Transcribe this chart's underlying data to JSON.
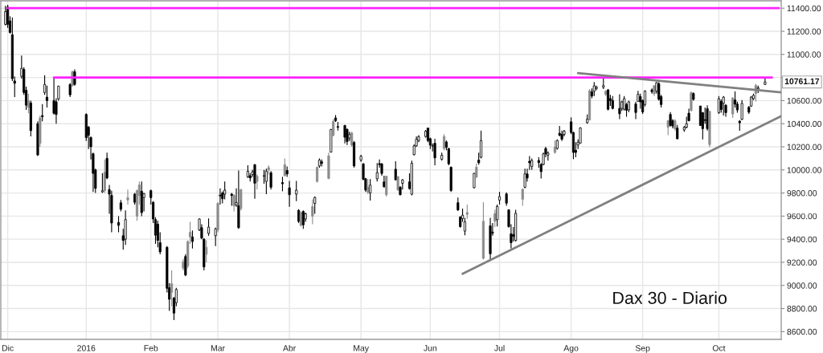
{
  "chart_data": {
    "type": "candlestick",
    "title": "Dax 30 - Diario",
    "x": [
      "2015-11-30",
      "2015-12-01",
      "2015-12-02",
      "2015-12-03",
      "2015-12-04",
      "2015-12-07",
      "2015-12-08",
      "2015-12-09",
      "2015-12-10",
      "2015-12-11",
      "2015-12-14",
      "2015-12-15",
      "2015-12-16",
      "2015-12-17",
      "2015-12-18",
      "2015-12-21",
      "2015-12-22",
      "2015-12-23",
      "2015-12-28",
      "2015-12-29",
      "2015-12-30",
      "2016-01-04",
      "2016-01-05",
      "2016-01-06",
      "2016-01-07",
      "2016-01-08",
      "2016-01-11",
      "2016-01-12",
      "2016-01-13",
      "2016-01-14",
      "2016-01-15",
      "2016-01-18",
      "2016-01-19",
      "2016-01-20",
      "2016-01-21",
      "2016-01-22",
      "2016-01-25",
      "2016-01-26",
      "2016-01-27",
      "2016-01-28",
      "2016-01-29",
      "2016-02-01",
      "2016-02-02",
      "2016-02-03",
      "2016-02-04",
      "2016-02-05",
      "2016-02-08",
      "2016-02-09",
      "2016-02-10",
      "2016-02-11",
      "2016-02-12",
      "2016-02-15",
      "2016-02-16",
      "2016-02-17",
      "2016-02-18",
      "2016-02-19",
      "2016-02-22",
      "2016-02-23",
      "2016-02-24",
      "2016-02-25",
      "2016-02-26",
      "2016-02-29",
      "2016-03-01",
      "2016-03-02",
      "2016-03-03",
      "2016-03-04",
      "2016-03-07",
      "2016-03-08",
      "2016-03-09",
      "2016-03-10",
      "2016-03-11",
      "2016-03-14",
      "2016-03-15",
      "2016-03-16",
      "2016-03-17",
      "2016-03-18",
      "2016-03-21",
      "2016-03-22",
      "2016-03-23",
      "2016-03-24",
      "2016-03-29",
      "2016-03-30",
      "2016-03-31",
      "2016-04-01",
      "2016-04-04",
      "2016-04-05",
      "2016-04-06",
      "2016-04-07",
      "2016-04-08",
      "2016-04-11",
      "2016-04-12",
      "2016-04-13",
      "2016-04-14",
      "2016-04-15",
      "2016-04-18",
      "2016-04-19",
      "2016-04-20",
      "2016-04-21",
      "2016-04-22",
      "2016-04-25",
      "2016-04-26",
      "2016-04-27",
      "2016-04-28",
      "2016-04-29",
      "2016-05-02",
      "2016-05-03",
      "2016-05-04",
      "2016-05-05",
      "2016-05-06",
      "2016-05-09",
      "2016-05-10",
      "2016-05-11",
      "2016-05-12",
      "2016-05-13",
      "2016-05-17",
      "2016-05-18",
      "2016-05-19",
      "2016-05-20",
      "2016-05-23",
      "2016-05-24",
      "2016-05-25",
      "2016-05-26",
      "2016-05-27",
      "2016-05-30",
      "2016-05-31",
      "2016-06-01",
      "2016-06-02",
      "2016-06-03",
      "2016-06-06",
      "2016-06-07",
      "2016-06-08",
      "2016-06-09",
      "2016-06-10",
      "2016-06-13",
      "2016-06-14",
      "2016-06-15",
      "2016-06-16",
      "2016-06-17",
      "2016-06-20",
      "2016-06-21",
      "2016-06-22",
      "2016-06-23",
      "2016-06-24",
      "2016-06-27",
      "2016-06-28",
      "2016-06-29",
      "2016-06-30",
      "2016-07-01",
      "2016-07-04",
      "2016-07-05",
      "2016-07-06",
      "2016-07-07",
      "2016-07-08",
      "2016-07-11",
      "2016-07-12",
      "2016-07-13",
      "2016-07-14",
      "2016-07-15",
      "2016-07-18",
      "2016-07-19",
      "2016-07-20",
      "2016-07-21",
      "2016-07-22",
      "2016-07-25",
      "2016-07-26",
      "2016-07-27",
      "2016-07-28",
      "2016-07-29",
      "2016-08-01",
      "2016-08-02",
      "2016-08-03",
      "2016-08-04",
      "2016-08-05",
      "2016-08-08",
      "2016-08-09",
      "2016-08-10",
      "2016-08-11",
      "2016-08-12",
      "2016-08-15",
      "2016-08-16",
      "2016-08-17",
      "2016-08-18",
      "2016-08-19",
      "2016-08-22",
      "2016-08-23",
      "2016-08-24",
      "2016-08-25",
      "2016-08-26",
      "2016-08-29",
      "2016-08-30",
      "2016-08-31",
      "2016-09-01",
      "2016-09-02",
      "2016-09-05",
      "2016-09-06",
      "2016-09-07",
      "2016-09-08",
      "2016-09-09",
      "2016-09-12",
      "2016-09-13",
      "2016-09-14",
      "2016-09-15",
      "2016-09-16",
      "2016-09-19",
      "2016-09-20",
      "2016-09-21",
      "2016-09-22",
      "2016-09-23",
      "2016-09-26",
      "2016-09-27",
      "2016-09-28",
      "2016-09-29",
      "2016-09-30",
      "2016-10-04",
      "2016-10-05",
      "2016-10-06",
      "2016-10-07",
      "2016-10-10",
      "2016-10-11",
      "2016-10-12",
      "2016-10-13",
      "2016-10-14",
      "2016-10-17",
      "2016-10-18",
      "2016-10-19",
      "2016-10-20",
      "2016-10-21",
      "2016-10-24"
    ],
    "ohlc": [
      [
        11260,
        11420,
        11250,
        11370
      ],
      [
        11410,
        11430,
        11230,
        11260
      ],
      [
        11290,
        11330,
        11180,
        11190
      ],
      [
        11170,
        11320,
        10770,
        10790
      ],
      [
        10770,
        10810,
        10630,
        10750
      ],
      [
        10810,
        10990,
        10790,
        10880
      ],
      [
        10870,
        10890,
        10650,
        10670
      ],
      [
        10690,
        10720,
        10520,
        10560
      ],
      [
        10540,
        10660,
        10490,
        10600
      ],
      [
        10580,
        10600,
        10290,
        10340
      ],
      [
        10400,
        10420,
        10120,
        10130
      ],
      [
        10230,
        10470,
        10200,
        10450
      ],
      [
        10470,
        10570,
        10420,
        10460
      ],
      [
        10670,
        10820,
        10650,
        10740
      ],
      [
        10630,
        10730,
        10540,
        10600
      ],
      [
        10600,
        10800,
        10480,
        10490
      ],
      [
        10590,
        10620,
        10400,
        10480
      ],
      [
        10615,
        10730,
        10600,
        10725
      ],
      [
        10740,
        10750,
        10630,
        10650
      ],
      [
        10730,
        10860,
        10720,
        10850
      ],
      [
        10850,
        10870,
        10730,
        10740
      ],
      [
        10480,
        10490,
        10250,
        10280
      ],
      [
        10370,
        10380,
        10180,
        10300
      ],
      [
        10280,
        10290,
        10090,
        10200
      ],
      [
        10140,
        10150,
        9810,
        9970
      ],
      [
        10000,
        10010,
        9800,
        9840
      ],
      [
        9810,
        9970,
        9800,
        9820
      ],
      [
        9820,
        10090,
        9800,
        9980
      ],
      [
        10100,
        10150,
        9920,
        9930
      ],
      [
        9830,
        9870,
        9620,
        9790
      ],
      [
        9780,
        9820,
        9460,
        9540
      ],
      [
        9545,
        9600,
        9460,
        9520
      ],
      [
        9715,
        9740,
        9640,
        9660
      ],
      [
        9430,
        9490,
        9310,
        9390
      ],
      [
        9400,
        9650,
        9350,
        9570
      ],
      [
        9740,
        9830,
        9700,
        9760
      ],
      [
        9790,
        9800,
        9700,
        9720
      ],
      [
        9600,
        9830,
        9560,
        9820
      ],
      [
        9780,
        9900,
        9700,
        9870
      ],
      [
        9815,
        9900,
        9600,
        9630
      ],
      [
        9760,
        9800,
        9640,
        9795
      ],
      [
        9820,
        9830,
        9700,
        9760
      ],
      [
        9720,
        9730,
        9540,
        9575
      ],
      [
        9570,
        9590,
        9360,
        9435
      ],
      [
        9530,
        9560,
        9330,
        9390
      ],
      [
        9370,
        9460,
        9270,
        9290
      ],
      [
        9330,
        9340,
        8940,
        8975
      ],
      [
        8980,
        9020,
        8780,
        8880
      ],
      [
        8940,
        9130,
        8820,
        9015
      ],
      [
        8890,
        8900,
        8700,
        8760
      ],
      [
        8850,
        8980,
        8820,
        8965
      ],
      [
        9150,
        9230,
        9130,
        9205
      ],
      [
        9250,
        9270,
        9080,
        9090
      ],
      [
        9170,
        9390,
        9150,
        9380
      ],
      [
        9420,
        9550,
        9360,
        9460
      ],
      [
        9420,
        9475,
        9320,
        9380
      ],
      [
        9480,
        9580,
        9470,
        9575
      ],
      [
        9500,
        9530,
        9400,
        9410
      ],
      [
        9400,
        9410,
        9130,
        9160
      ],
      [
        9270,
        9390,
        9200,
        9330
      ],
      [
        9450,
        9580,
        9430,
        9505
      ],
      [
        9430,
        9500,
        9340,
        9490
      ],
      [
        9480,
        9720,
        9460,
        9710
      ],
      [
        9780,
        9840,
        9700,
        9775
      ],
      [
        9800,
        9815,
        9710,
        9750
      ],
      [
        9790,
        9900,
        9745,
        9825
      ],
      [
        9790,
        9800,
        9690,
        9778
      ],
      [
        9780,
        9790,
        9640,
        9690
      ],
      [
        9695,
        9840,
        9680,
        9718
      ],
      [
        9690,
        9995,
        9490,
        9500
      ],
      [
        9665,
        9835,
        9650,
        9830
      ],
      [
        9940,
        10040,
        9930,
        9988
      ],
      [
        9950,
        9970,
        9900,
        9930
      ],
      [
        9960,
        10000,
        9940,
        9983
      ],
      [
        10045,
        10050,
        9750,
        9885
      ],
      [
        9900,
        9960,
        9830,
        9945
      ],
      [
        9945,
        10000,
        9880,
        9950
      ],
      [
        9900,
        10010,
        9790,
        9990
      ],
      [
        10000,
        10040,
        9960,
        10020
      ],
      [
        9975,
        9990,
        9830,
        9850
      ],
      [
        9890,
        9940,
        9815,
        9880
      ],
      [
        9950,
        10100,
        9945,
        10045
      ],
      [
        9995,
        10030,
        9940,
        9965
      ],
      [
        9845,
        9905,
        9680,
        9785
      ],
      [
        9790,
        9905,
        9730,
        9825
      ],
      [
        9650,
        9660,
        9540,
        9555
      ],
      [
        9520,
        9640,
        9510,
        9630
      ],
      [
        9640,
        9650,
        9490,
        9525
      ],
      [
        9575,
        9630,
        9550,
        9620
      ],
      [
        9600,
        9745,
        9530,
        9683
      ],
      [
        9710,
        9770,
        9620,
        9762
      ],
      [
        9900,
        10030,
        9890,
        10022
      ],
      [
        10034,
        10100,
        10020,
        10085
      ],
      [
        10070,
        10090,
        10030,
        10057
      ],
      [
        9925,
        10150,
        9920,
        10122
      ],
      [
        10155,
        10355,
        10150,
        10350
      ],
      [
        10300,
        10440,
        10290,
        10420
      ],
      [
        10450,
        10475,
        10415,
        10426
      ],
      [
        10375,
        10415,
        10340,
        10369
      ],
      [
        10385,
        10390,
        10230,
        10283
      ],
      [
        10350,
        10360,
        10215,
        10246
      ],
      [
        10276,
        10330,
        10250,
        10306
      ],
      [
        10215,
        10330,
        10200,
        10320
      ],
      [
        10237,
        10250,
        10020,
        10034
      ],
      [
        10085,
        10130,
        10070,
        10119
      ],
      [
        10052,
        10060,
        9910,
        9919
      ],
      [
        9923,
        9930,
        9810,
        9826
      ],
      [
        9808,
        9920,
        9790,
        9850
      ],
      [
        9800,
        9920,
        9735,
        9868
      ],
      [
        9923,
        10060,
        9900,
        9976
      ],
      [
        10055,
        10090,
        10020,
        10045
      ],
      [
        10052,
        10060,
        9950,
        9969
      ],
      [
        9896,
        9950,
        9845,
        9855
      ],
      [
        9785,
        9950,
        9770,
        9945
      ],
      [
        10006,
        10075,
        9910,
        9914
      ],
      [
        9827,
        9945,
        9820,
        9942
      ],
      [
        9850,
        9860,
        9780,
        9785
      ],
      [
        9884,
        9920,
        9830,
        9914
      ],
      [
        9896,
        9970,
        9830,
        9838
      ],
      [
        9790,
        10080,
        9780,
        10057
      ],
      [
        10132,
        10220,
        10125,
        10208
      ],
      [
        10208,
        10290,
        10200,
        10265
      ],
      [
        10254,
        10300,
        10240,
        10288
      ],
      [
        10289,
        10345,
        10280,
        10335
      ],
      [
        10362,
        10365,
        10240,
        10254
      ],
      [
        10270,
        10280,
        10180,
        10215
      ],
      [
        10205,
        10230,
        10160,
        10212
      ],
      [
        10231,
        10270,
        10040,
        10104
      ],
      [
        10092,
        10150,
        10080,
        10127
      ],
      [
        10185,
        10310,
        10170,
        10289
      ],
      [
        10242,
        10255,
        10170,
        10196
      ],
      [
        10185,
        10190,
        10040,
        10053
      ],
      [
        10023,
        10030,
        9810,
        9822
      ],
      [
        9716,
        9760,
        9645,
        9654
      ],
      [
        9592,
        9600,
        9500,
        9509
      ],
      [
        9578,
        9665,
        9550,
        9608
      ],
      [
        9470,
        9585,
        9435,
        9550
      ],
      [
        9615,
        9700,
        9575,
        9631
      ],
      [
        9846,
        9975,
        9840,
        9970
      ],
      [
        9938,
        10055,
        9930,
        10023
      ],
      [
        10085,
        10150,
        10045,
        10062
      ],
      [
        10109,
        10340,
        10100,
        10254
      ],
      [
        9234,
        9720,
        9225,
        9555
      ],
      [
        9516,
        9585,
        9223,
        9274
      ],
      [
        9462,
        9540,
        9430,
        9452
      ],
      [
        9555,
        9655,
        9505,
        9620
      ],
      [
        9569,
        9700,
        9510,
        9684
      ],
      [
        9739,
        9810,
        9700,
        9769
      ],
      [
        9792,
        9805,
        9690,
        9712
      ],
      [
        9654,
        9660,
        9500,
        9509
      ],
      [
        9447,
        9530,
        9320,
        9370
      ],
      [
        9440,
        9505,
        9380,
        9425
      ],
      [
        9389,
        9655,
        9380,
        9624
      ],
      [
        9746,
        9840,
        9690,
        9832
      ],
      [
        9850,
        10010,
        9840,
        9966
      ],
      [
        9965,
        10010,
        9900,
        9930
      ],
      [
        10075,
        10120,
        10000,
        10062
      ],
      [
        10030,
        10100,
        10000,
        10081
      ],
      [
        10082,
        10110,
        10020,
        10063
      ],
      [
        10047,
        10060,
        9925,
        9985
      ],
      [
        10047,
        10150,
        10040,
        10139
      ],
      [
        10185,
        10200,
        10110,
        10140
      ],
      [
        10128,
        10160,
        10080,
        10146
      ],
      [
        10151,
        10255,
        10140,
        10197
      ],
      [
        10186,
        10265,
        10175,
        10255
      ],
      [
        10317,
        10380,
        10290,
        10301
      ],
      [
        10308,
        10340,
        10250,
        10266
      ],
      [
        10308,
        10345,
        10290,
        10336
      ],
      [
        10416,
        10456,
        10310,
        10324
      ],
      [
        10324,
        10330,
        10093,
        10151
      ],
      [
        10170,
        10240,
        10110,
        10151
      ],
      [
        10215,
        10265,
        10180,
        10239
      ],
      [
        10232,
        10370,
        10230,
        10363
      ],
      [
        10409,
        10480,
        10400,
        10439
      ],
      [
        10432,
        10700,
        10430,
        10686
      ],
      [
        10677,
        10705,
        10620,
        10640
      ],
      [
        10682,
        10760,
        10640,
        10728
      ],
      [
        10705,
        10730,
        10690,
        10716
      ],
      [
        10716,
        10809,
        10700,
        10730
      ],
      [
        10654,
        10690,
        10640,
        10681
      ],
      [
        10693,
        10700,
        10515,
        10525
      ],
      [
        10617,
        10650,
        10555,
        10601
      ],
      [
        10601,
        10640,
        10525,
        10532
      ],
      [
        10532,
        10654,
        10439,
        10486
      ],
      [
        10532,
        10600,
        10510,
        10589
      ],
      [
        10525,
        10640,
        10515,
        10617
      ],
      [
        10566,
        10580,
        10460,
        10516
      ],
      [
        10520,
        10600,
        10500,
        10589
      ],
      [
        10571,
        10590,
        10440,
        10497
      ],
      [
        10594,
        10685,
        10590,
        10654
      ],
      [
        10635,
        10660,
        10530,
        10589
      ],
      [
        10601,
        10610,
        10485,
        10502
      ],
      [
        10566,
        10690,
        10550,
        10682
      ],
      [
        10693,
        10705,
        10660,
        10677
      ],
      [
        10659,
        10735,
        10640,
        10728
      ],
      [
        10682,
        10760,
        10660,
        10755
      ],
      [
        10746,
        10760,
        10600,
        10612
      ],
      [
        10635,
        10650,
        10540,
        10566
      ],
      [
        10370,
        10430,
        10300,
        10426
      ],
      [
        10480,
        10500,
        10375,
        10385
      ],
      [
        10426,
        10440,
        10360,
        10380
      ],
      [
        10357,
        10440,
        10340,
        10426
      ],
      [
        10362,
        10390,
        10265,
        10270
      ],
      [
        10346,
        10380,
        10330,
        10369
      ],
      [
        10369,
        10460,
        10360,
        10399
      ],
      [
        10491,
        10530,
        10420,
        10426
      ],
      [
        10514,
        10680,
        10505,
        10669
      ],
      [
        10662,
        10670,
        10600,
        10611
      ],
      [
        10553,
        10555,
        10380,
        10385
      ],
      [
        10496,
        10500,
        10265,
        10357
      ],
      [
        10435,
        10540,
        10400,
        10428
      ],
      [
        10530,
        10560,
        10340,
        10357
      ],
      [
        10219,
        10510,
        10196,
        10507
      ],
      [
        10496,
        10640,
        10485,
        10616
      ],
      [
        10593,
        10610,
        10495,
        10523
      ],
      [
        10576,
        10640,
        10470,
        10630
      ],
      [
        10560,
        10570,
        10460,
        10496
      ],
      [
        10484,
        10630,
        10450,
        10622
      ],
      [
        10606,
        10680,
        10540,
        10569
      ],
      [
        10569,
        10590,
        10495,
        10519
      ],
      [
        10422,
        10430,
        10339,
        10408
      ],
      [
        10438,
        10605,
        10430,
        10576
      ],
      [
        10542,
        10555,
        10485,
        10500
      ],
      [
        10553,
        10640,
        10545,
        10630
      ],
      [
        10616,
        10660,
        10605,
        10646
      ],
      [
        10662,
        10745,
        10590,
        10731
      ],
      [
        10700,
        10730,
        10665,
        10711
      ],
      [
        10740,
        10805,
        10735,
        10761.17
      ]
    ],
    "colors": [
      "#ffffff",
      "#000000",
      "#000000",
      "#000000",
      "#000000",
      "#ffffff",
      "#000000",
      "#000000",
      "#8c8c8c",
      "#000000",
      "#000000",
      "#8c8c8c",
      "#000000",
      "#ffffff",
      "#000000",
      "#000000",
      "#000000",
      "#ffffff",
      "#000000",
      "#8c8c8c",
      "#000000",
      "#000000",
      "#000000",
      "#000000",
      "#000000",
      "#000000",
      "#ffffff",
      "#8c8c8c",
      "#000000",
      "#000000",
      "#000000",
      "#000000",
      "#000000",
      "#000000",
      "#ffffff",
      "#8c8c8c",
      "#000000",
      "#8c8c8c",
      "#8c8c8c",
      "#000000",
      "#ffffff",
      "#000000",
      "#000000",
      "#000000",
      "#000000",
      "#000000",
      "#000000",
      "#000000",
      "#8c8c8c",
      "#000000",
      "#ffffff",
      "#8c8c8c",
      "#000000",
      "#8c8c8c",
      "#8c8c8c",
      "#000000",
      "#ffffff",
      "#000000",
      "#000000",
      "#8c8c8c",
      "#ffffff",
      "#ffffff",
      "#8c8c8c",
      "#000000",
      "#000000",
      "#ffffff",
      "#000000",
      "#8c8c8c",
      "#ffffff",
      "#000000",
      "#8c8c8c",
      "#ffffff",
      "#000000",
      "#ffffff",
      "#000000",
      "#8c8c8c",
      "#ffffff",
      "#ffffff",
      "#8c8c8c",
      "#000000",
      "#000000",
      "#8c8c8c",
      "#000000",
      "#000000",
      "#ffffff",
      "#000000",
      "#8c8c8c",
      "#000000",
      "#ffffff",
      "#8c8c8c",
      "#ffffff",
      "#8c8c8c",
      "#ffffff",
      "#000000",
      "#8c8c8c",
      "#ffffff",
      "#8c8c8c",
      "#000000",
      "#000000",
      "#000000",
      "#000000",
      "#ffffff",
      "#8c8c8c",
      "#000000",
      "#ffffff",
      "#000000",
      "#000000",
      "#8c8c8c",
      "#ffffff",
      "#ffffff",
      "#000000",
      "#000000",
      "#000000",
      "#8c8c8c",
      "#000000",
      "#8c8c8c",
      "#000000",
      "#ffffff",
      "#000000",
      "#ffffff",
      "#ffffff",
      "#ffffff",
      "#ffffff",
      "#ffffff",
      "#000000",
      "#000000",
      "#ffffff",
      "#000000",
      "#ffffff",
      "#8c8c8c",
      "#000000",
      "#000000",
      "#000000",
      "#000000",
      "#000000",
      "#ffffff",
      "#ffffff",
      "#8c8c8c",
      "#ffffff",
      "#8c8c8c",
      "#000000",
      "#ffffff",
      "#8c8c8c",
      "#000000",
      "#000000",
      "#8c8c8c",
      "#ffffff",
      "#ffffff",
      "#000000",
      "#000000",
      "#000000",
      "#000000",
      "#ffffff",
      "#8c8c8c",
      "#ffffff",
      "#000000",
      "#000000",
      "#ffffff",
      "#000000",
      "#000000",
      "#ffffff",
      "#000000",
      "#ffffff",
      "#8c8c8c",
      "#ffffff",
      "#000000",
      "#000000",
      "#ffffff",
      "#000000",
      "#000000",
      "#000000",
      "#ffffff",
      "#ffffff",
      "#ffffff",
      "#8c8c8c",
      "#000000",
      "#ffffff",
      "#ffffff",
      "#ffffff",
      "#8c8c8c",
      "#000000",
      "#000000",
      "#000000",
      "#000000",
      "#ffffff",
      "#ffffff",
      "#000000",
      "#ffffff",
      "#000000",
      "#ffffff",
      "#000000",
      "#000000",
      "#ffffff",
      "#000000",
      "#8c8c8c",
      "#ffffff",
      "#000000",
      "#000000",
      "#8c8c8c",
      "#000000",
      "#000000",
      "#8c8c8c",
      "#000000",
      "#ffffff",
      "#ffffff",
      "#000000",
      "#8c8c8c",
      "#000000",
      "#000000",
      "#000000",
      "#000000",
      "#000000",
      "#8c8c8c",
      "#ffffff",
      "#000000",
      "#ffffff",
      "#000000",
      "#8c8c8c",
      "#000000",
      "#000000",
      "#000000",
      "#ffffff",
      "#000000",
      "#ffffff",
      "#ffffff",
      "#8c8c8c",
      "#ffffff",
      "#ffffff"
    ],
    "series": [
      {
        "type": "line",
        "color": "#ff22ff",
        "x": [
          "2015-12-01",
          "2016-10-30"
        ],
        "values": [
          11400,
          11400
        ]
      },
      {
        "type": "line",
        "color": "#ff22ff",
        "x": [
          "2015-12-21",
          "2016-10-27"
        ],
        "values": [
          10800,
          10800
        ]
      },
      {
        "type": "line",
        "color": "#808080",
        "x": [
          "2016-08-04",
          "2016-10-31"
        ],
        "values": [
          10838,
          10672
        ]
      },
      {
        "type": "line",
        "color": "#808080",
        "x": [
          "2016-06-15",
          "2016-10-31"
        ],
        "values": [
          9100,
          10466
        ]
      }
    ],
    "xlim": [
      "2015-11-28",
      "2016-10-31"
    ],
    "ylim": [
      8533,
      11464
    ],
    "xticks": [
      {
        "value": "2015-12-01",
        "label": "Dic"
      },
      {
        "value": "2016-01-04",
        "label": "2016"
      },
      {
        "value": "2016-02-01",
        "label": "Feb"
      },
      {
        "value": "2016-03-01",
        "label": "Mar"
      },
      {
        "value": "2016-04-01",
        "label": "Abr"
      },
      {
        "value": "2016-05-02",
        "label": "May"
      },
      {
        "value": "2016-06-01",
        "label": "Jun"
      },
      {
        "value": "2016-07-01",
        "label": "Jul"
      },
      {
        "value": "2016-08-01",
        "label": "Ago"
      },
      {
        "value": "2016-09-01",
        "label": "Sep"
      },
      {
        "value": "2016-10-04",
        "label": "Oct"
      }
    ],
    "yticks": [
      {
        "value": 8600,
        "label": "8600.00"
      },
      {
        "value": 8800,
        "label": "8800.00"
      },
      {
        "value": 9000,
        "label": "9000.00"
      },
      {
        "value": 9200,
        "label": "9200.00"
      },
      {
        "value": 9400,
        "label": "9400.00"
      },
      {
        "value": 9600,
        "label": "9600.00"
      },
      {
        "value": 9800,
        "label": "9800.00"
      },
      {
        "value": 10000,
        "label": "10000.00"
      },
      {
        "value": 10200,
        "label": "10200.00"
      },
      {
        "value": 10400,
        "label": "10400.00"
      },
      {
        "value": 10600,
        "label": "10600.00"
      },
      {
        "value": 10800,
        "label": null
      },
      {
        "value": 11000,
        "label": "11000.00"
      },
      {
        "value": 11200,
        "label": "11200.00"
      },
      {
        "value": 11400,
        "label": "11400.00"
      }
    ],
    "grid": true,
    "annotations": [
      "10761.17"
    ]
  }
}
